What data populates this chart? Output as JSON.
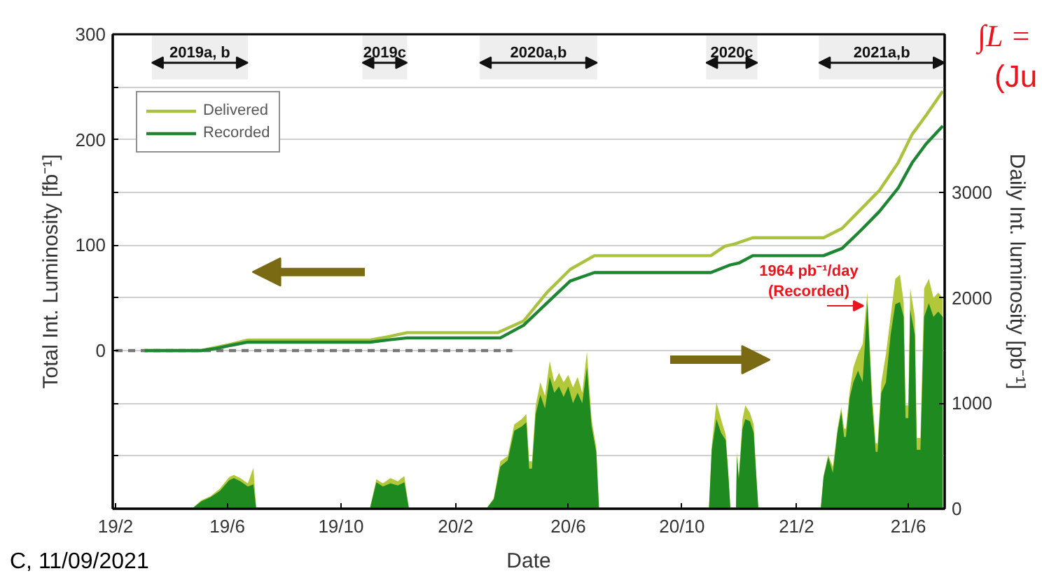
{
  "chart_data": {
    "type": "line",
    "xlabel": "Date",
    "ylabel": "Total Int. Luminosity [fb⁻¹]",
    "y2label": "Daily Int. luminosity [pb⁻¹]",
    "xlim": [
      "2019-01-29",
      "2021-07-10"
    ],
    "ylim": [
      -150,
      300
    ],
    "y2lim": [
      0,
      4500
    ],
    "xticks": [
      {
        "value": "2019-02-01",
        "label": "19/2"
      },
      {
        "value": "2019-06-01",
        "label": "19/6"
      },
      {
        "value": "2019-10-01",
        "label": "19/10"
      },
      {
        "value": "2020-02-01",
        "label": "20/2"
      },
      {
        "value": "2020-06-01",
        "label": "20/6"
      },
      {
        "value": "2020-10-01",
        "label": "20/10"
      },
      {
        "value": "2021-02-01",
        "label": "21/2"
      },
      {
        "value": "2021-06-01",
        "label": "21/6"
      }
    ],
    "yticks": [
      {
        "value": -100,
        "label": null
      },
      {
        "value": -50,
        "label": null
      },
      0,
      {
        "value": 50,
        "label": null
      },
      100,
      {
        "value": 150,
        "label": null
      },
      200,
      {
        "value": 250,
        "label": null
      },
      300
    ],
    "y2ticks": [
      0,
      1000,
      2000,
      3000
    ],
    "grid": "y",
    "legend": "top left",
    "bands": [
      {
        "axis": "x",
        "from": "2019-03-12",
        "to": "2019-06-23",
        "label": "2019a, b",
        "color": "#111111"
      },
      {
        "axis": "x",
        "from": "2019-10-24",
        "to": "2019-12-11",
        "label": "2019c",
        "color": "#111111"
      },
      {
        "axis": "x",
        "from": "2020-02-27",
        "to": "2020-07-02",
        "label": "2020a,b",
        "color": "#111111"
      },
      {
        "axis": "x",
        "from": "2020-10-27",
        "to": "2020-12-21",
        "label": "2020c",
        "color": "#111111"
      },
      {
        "axis": "x",
        "from": "2021-02-25",
        "to": "2021-07-10",
        "label": "2021a,b",
        "color": "#111111"
      }
    ],
    "annotations": [
      "1964 pb⁻¹/day\n(Recorded)",
      "∫L =",
      "(Ju",
      "C, 11/09/2021"
    ],
    "series": [
      {
        "type": "area",
        "axis": "y2",
        "color": "#b2c83a",
        "x": [
          "2019-04-24",
          "2019-05-04",
          "2019-05-14",
          "2019-05-24",
          "2019-06-03",
          "2019-06-08",
          "2019-06-15",
          "2019-06-23",
          "2019-06-29",
          "2019-07-02",
          "2019-11-01",
          "2019-11-08",
          "2019-11-15",
          "2019-11-23",
          "2019-12-01",
          "2019-12-08",
          "2019-12-13",
          "2020-03-05",
          "2020-03-13",
          "2020-03-20",
          "2020-03-28",
          "2020-04-04",
          "2020-04-12",
          "2020-04-17",
          "2020-04-20",
          "2020-04-23",
          "2020-04-27",
          "2020-05-02",
          "2020-05-07",
          "2020-05-12",
          "2020-05-17",
          "2020-05-22",
          "2020-05-27",
          "2020-06-01",
          "2020-06-06",
          "2020-06-11",
          "2020-06-16",
          "2020-06-21",
          "2020-06-26",
          "2020-07-01",
          "2020-07-04",
          "2020-10-30",
          "2020-11-02",
          "2020-11-07",
          "2020-11-12",
          "2020-11-17",
          "2020-11-20",
          "2020-11-22",
          "2020-11-28",
          "2020-11-29",
          "2020-12-01",
          "2020-12-05",
          "2020-12-08",
          "2020-12-13",
          "2020-12-17",
          "2020-12-19",
          "2020-12-22",
          "2021-02-27",
          "2021-03-02",
          "2021-03-07",
          "2021-03-12",
          "2021-03-17",
          "2021-03-21",
          "2021-03-24",
          "2021-03-26",
          "2021-03-30",
          "2021-04-03",
          "2021-04-08",
          "2021-04-13",
          "2021-04-18",
          "2021-04-23",
          "2021-04-27",
          "2021-04-29",
          "2021-05-03",
          "2021-05-08",
          "2021-05-13",
          "2021-05-18",
          "2021-05-23",
          "2021-05-27",
          "2021-05-29",
          "2021-06-01",
          "2021-06-03",
          "2021-06-08",
          "2021-06-10",
          "2021-06-14",
          "2021-06-18",
          "2021-06-23",
          "2021-06-28",
          "2021-07-03",
          "2021-07-08"
        ],
        "values": [
          0,
          80,
          120,
          190,
          300,
          320,
          290,
          240,
          390,
          0,
          0,
          280,
          240,
          290,
          260,
          310,
          0,
          0,
          100,
          450,
          500,
          800,
          850,
          900,
          450,
          450,
          980,
          1200,
          1070,
          1400,
          1200,
          1290,
          1200,
          1270,
          1150,
          1250,
          1100,
          1490,
          850,
          580,
          0,
          0,
          600,
          1010,
          850,
          700,
          310,
          0,
          0,
          540,
          300,
          850,
          980,
          910,
          800,
          450,
          0,
          0,
          310,
          510,
          400,
          760,
          960,
          760,
          760,
          1110,
          1340,
          1470,
          1560,
          2050,
          1110,
          620,
          620,
          1200,
          1470,
          1820,
          2180,
          2220,
          1960,
          980,
          980,
          2090,
          1820,
          670,
          670,
          2090,
          2180,
          2000,
          2050,
          2000
        ]
      },
      {
        "type": "area",
        "axis": "y2",
        "color": "#1f8a1f",
        "x": [
          "2019-04-24",
          "2019-05-04",
          "2019-05-14",
          "2019-05-24",
          "2019-06-03",
          "2019-06-08",
          "2019-06-15",
          "2019-06-23",
          "2019-06-29",
          "2019-07-02",
          "2019-11-01",
          "2019-11-08",
          "2019-11-15",
          "2019-11-23",
          "2019-12-01",
          "2019-12-08",
          "2019-12-13",
          "2020-03-05",
          "2020-03-13",
          "2020-03-20",
          "2020-03-28",
          "2020-04-04",
          "2020-04-12",
          "2020-04-17",
          "2020-04-20",
          "2020-04-23",
          "2020-04-27",
          "2020-05-02",
          "2020-05-07",
          "2020-05-12",
          "2020-05-17",
          "2020-05-22",
          "2020-05-27",
          "2020-06-01",
          "2020-06-06",
          "2020-06-11",
          "2020-06-16",
          "2020-06-21",
          "2020-06-26",
          "2020-07-01",
          "2020-07-04",
          "2020-10-30",
          "2020-11-02",
          "2020-11-07",
          "2020-11-12",
          "2020-11-17",
          "2020-11-20",
          "2020-11-22",
          "2020-11-28",
          "2020-11-29",
          "2020-12-01",
          "2020-12-05",
          "2020-12-08",
          "2020-12-13",
          "2020-12-17",
          "2020-12-19",
          "2020-12-22",
          "2021-02-27",
          "2021-03-02",
          "2021-03-07",
          "2021-03-12",
          "2021-03-17",
          "2021-03-21",
          "2021-03-24",
          "2021-03-26",
          "2021-03-30",
          "2021-04-03",
          "2021-04-08",
          "2021-04-13",
          "2021-04-18",
          "2021-04-23",
          "2021-04-27",
          "2021-04-29",
          "2021-05-03",
          "2021-05-08",
          "2021-05-13",
          "2021-05-18",
          "2021-05-23",
          "2021-05-27",
          "2021-05-29",
          "2021-06-01",
          "2021-06-03",
          "2021-06-08",
          "2021-06-10",
          "2021-06-14",
          "2021-06-18",
          "2021-06-23",
          "2021-06-28",
          "2021-07-03",
          "2021-07-08"
        ],
        "values": [
          0,
          70,
          110,
          170,
          270,
          290,
          260,
          210,
          230,
          0,
          0,
          250,
          210,
          240,
          220,
          250,
          0,
          0,
          90,
          400,
          460,
          740,
          780,
          820,
          380,
          380,
          900,
          1080,
          950,
          1250,
          1100,
          1160,
          1060,
          1160,
          1000,
          1100,
          1000,
          1340,
          780,
          540,
          0,
          0,
          560,
          850,
          720,
          650,
          290,
          0,
          0,
          500,
          280,
          760,
          850,
          830,
          720,
          420,
          0,
          0,
          300,
          490,
          340,
          730,
          920,
          680,
          680,
          1050,
          1200,
          1310,
          1200,
          1964,
          1000,
          540,
          540,
          1100,
          1200,
          1650,
          1940,
          1960,
          1820,
          860,
          860,
          1890,
          1650,
          560,
          560,
          1820,
          1950,
          1820,
          1870,
          1820
        ]
      },
      {
        "type": "line",
        "color": "#777777",
        "line_style": "dashed",
        "x": [
          "2019-02-01",
          "2020-04-02"
        ],
        "values": [
          0,
          0
        ]
      },
      {
        "name": "Delivered",
        "color": "#a9c23f",
        "x": [
          "2019-03-04",
          "2019-05-04",
          "2019-05-20",
          "2019-06-05",
          "2019-06-23",
          "2019-07-02",
          "2019-11-01",
          "2019-11-20",
          "2019-12-11",
          "2020-03-17",
          "2020-04-14",
          "2020-05-09",
          "2020-06-03",
          "2020-06-29",
          "2020-11-01",
          "2020-11-16",
          "2020-11-26",
          "2020-12-16",
          "2021-03-02",
          "2021-03-22",
          "2021-04-11",
          "2021-05-01",
          "2021-05-21",
          "2021-06-05",
          "2021-06-20",
          "2021-07-08"
        ],
        "values": [
          0,
          0,
          3,
          6,
          10,
          10,
          10,
          13,
          17,
          17,
          28,
          55,
          77,
          90,
          90,
          99,
          101,
          107,
          107,
          116,
          134,
          152,
          178,
          205,
          223,
          246
        ]
      },
      {
        "name": "Recorded",
        "color": "#1e8532",
        "x": [
          "2019-03-04",
          "2019-05-04",
          "2019-05-20",
          "2019-06-05",
          "2019-06-23",
          "2019-11-01",
          "2019-11-20",
          "2019-12-11",
          "2020-03-20",
          "2020-04-14",
          "2020-05-09",
          "2020-06-03",
          "2020-06-29",
          "2020-11-01",
          "2020-11-21",
          "2020-12-01",
          "2020-12-16",
          "2021-03-02",
          "2021-03-22",
          "2021-04-11",
          "2021-05-01",
          "2021-05-21",
          "2021-06-05",
          "2021-06-20",
          "2021-07-08"
        ],
        "values": [
          0,
          0,
          2,
          5,
          8,
          8,
          10,
          12,
          12,
          24,
          45,
          66,
          74,
          74,
          81,
          83,
          90,
          90,
          97,
          114,
          132,
          154,
          178,
          196,
          213
        ]
      }
    ]
  }
}
